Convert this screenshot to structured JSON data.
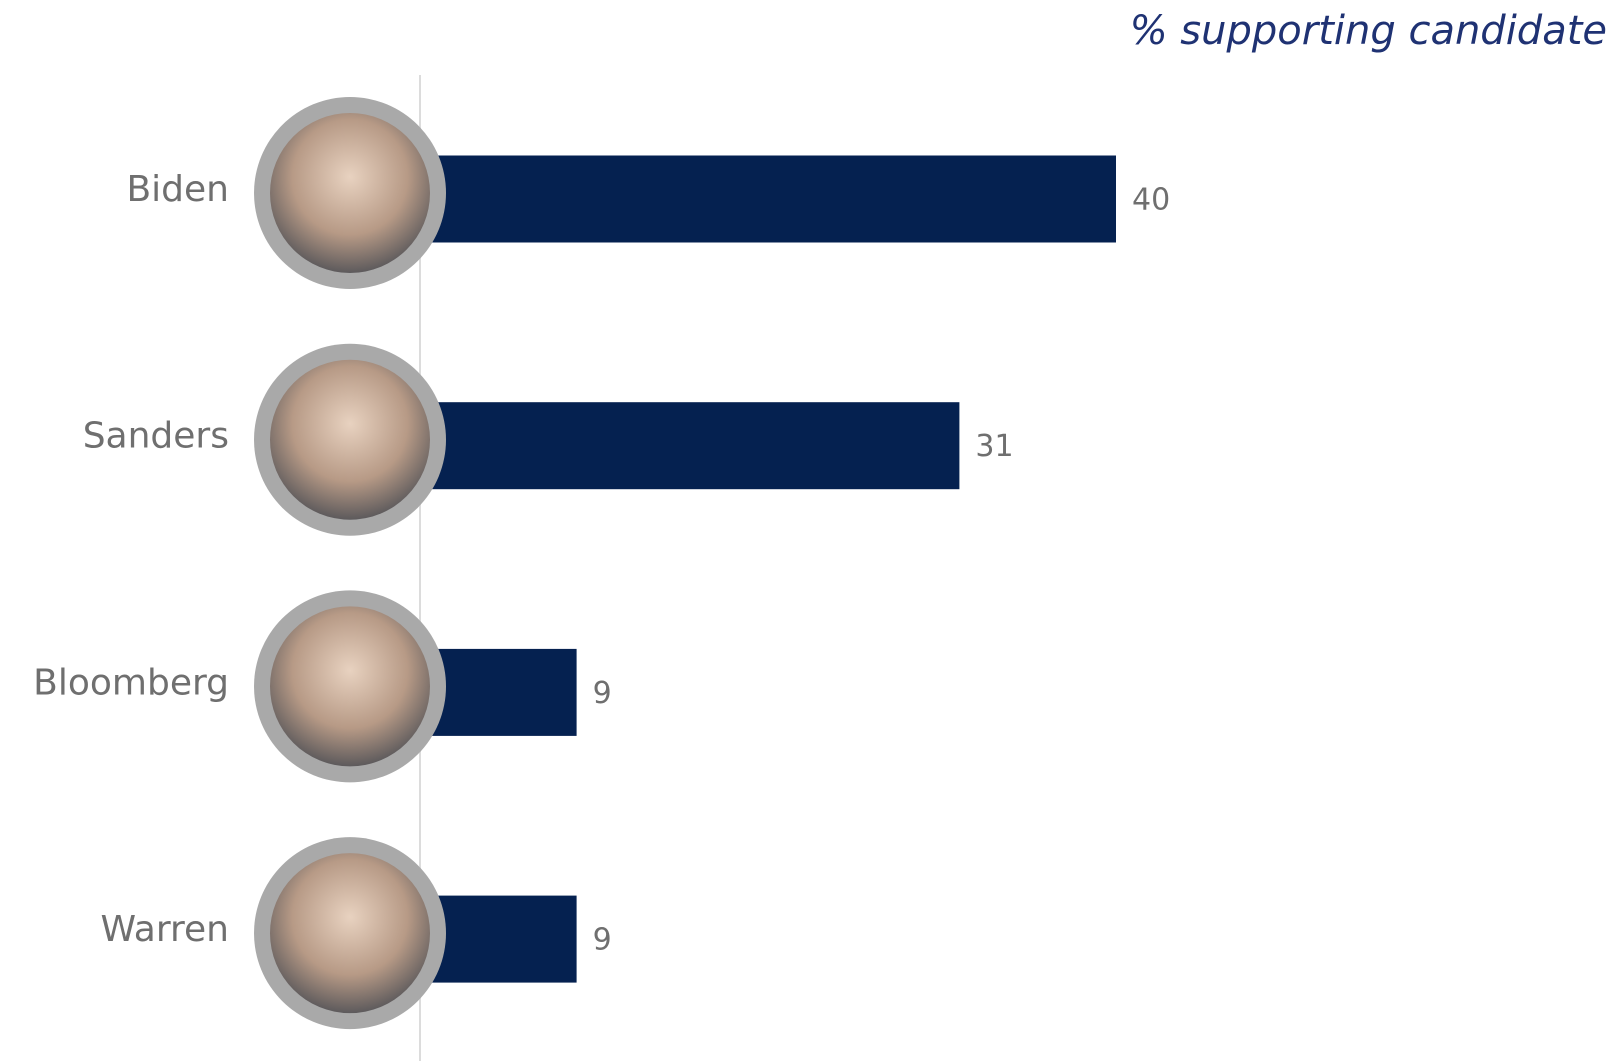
{
  "chart_data": {
    "type": "bar",
    "orientation": "horizontal",
    "title": "% supporting candidate",
    "categories": [
      "Biden",
      "Sanders",
      "Bloomberg",
      "Warren"
    ],
    "values": [
      40,
      31,
      9,
      9
    ],
    "color": "#052150"
  }
}
